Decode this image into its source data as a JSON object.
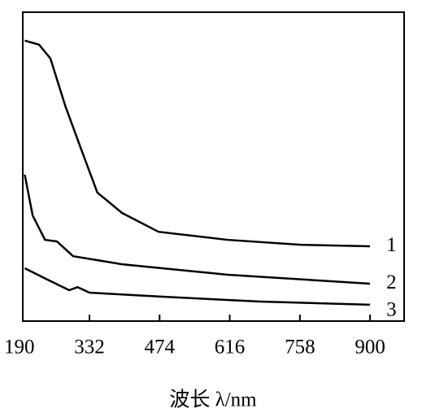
{
  "chart_data": {
    "type": "line",
    "x_label": "波长 λ/nm",
    "xlim": [
      197,
      969
    ],
    "xticks": [
      190,
      332,
      474,
      616,
      758,
      900
    ],
    "ylim": [
      0,
      100
    ],
    "series": [
      {
        "name": "1",
        "color": "#000000",
        "x": [
          201,
          230,
          253,
          283,
          316,
          348,
          398,
          472,
          612,
          760,
          900
        ],
        "values": [
          90.8,
          89.5,
          85,
          69.7,
          55.3,
          41.6,
          35,
          28.9,
          26.3,
          24.7,
          24.2
        ]
      },
      {
        "name": "2",
        "color": "#000000",
        "x": [
          201,
          217,
          242,
          266,
          299,
          398,
          612,
          900
        ],
        "values": [
          47.4,
          34.2,
          26.3,
          25.8,
          21,
          18.4,
          15,
          12.1
        ]
      },
      {
        "name": "3",
        "color": "#000000",
        "x": [
          201,
          250,
          291,
          308,
          332,
          480,
          678,
          900
        ],
        "values": [
          17.1,
          13.2,
          10,
          11,
          9.2,
          7.9,
          6.3,
          5.3
        ]
      }
    ]
  }
}
